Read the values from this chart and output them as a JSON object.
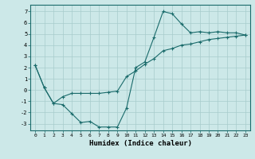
{
  "xlabel": "Humidex (Indice chaleur)",
  "background_color": "#cce8e8",
  "grid_color": "#a8cccc",
  "line_color": "#1a6b6b",
  "xlim": [
    -0.5,
    23.5
  ],
  "ylim": [
    -3.6,
    7.6
  ],
  "xticks": [
    0,
    1,
    2,
    3,
    4,
    5,
    6,
    7,
    8,
    9,
    10,
    11,
    12,
    13,
    14,
    15,
    16,
    17,
    18,
    19,
    20,
    21,
    22,
    23
  ],
  "yticks": [
    -3,
    -2,
    -1,
    0,
    1,
    2,
    3,
    4,
    5,
    6,
    7
  ],
  "line1_x": [
    0,
    1,
    2,
    3,
    4,
    5,
    6,
    7,
    8,
    9,
    10,
    11,
    12,
    13,
    14,
    15,
    16,
    17,
    18,
    19,
    20,
    21,
    22,
    23
  ],
  "line1_y": [
    2.2,
    0.2,
    -1.2,
    -1.3,
    -2.1,
    -2.9,
    -2.8,
    -3.3,
    -3.3,
    -3.3,
    -1.6,
    2.0,
    2.5,
    4.7,
    7.0,
    6.8,
    5.9,
    5.1,
    5.2,
    5.1,
    5.2,
    5.1,
    5.1,
    4.9
  ],
  "line2_x": [
    0,
    1,
    2,
    3,
    4,
    5,
    6,
    7,
    8,
    9,
    10,
    11,
    12,
    13,
    14,
    15,
    16,
    17,
    18,
    19,
    20,
    21,
    22,
    23
  ],
  "line2_y": [
    2.2,
    0.2,
    -1.2,
    -0.6,
    -0.3,
    -0.3,
    -0.3,
    -0.3,
    -0.2,
    -0.1,
    1.2,
    1.7,
    2.3,
    2.8,
    3.5,
    3.7,
    4.0,
    4.1,
    4.3,
    4.5,
    4.6,
    4.7,
    4.8,
    4.9
  ]
}
